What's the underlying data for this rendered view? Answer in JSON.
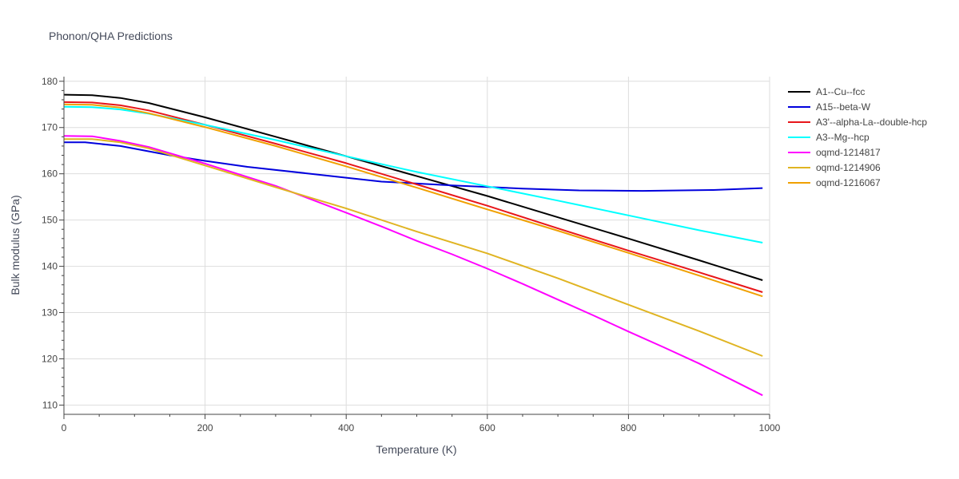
{
  "chart_data": {
    "type": "line",
    "title": "Phonon/QHA Predictions",
    "xlabel": "Temperature (K)",
    "ylabel": "Bulk modulus (GPa)",
    "xlim": [
      0,
      1000
    ],
    "ylim": [
      108,
      181
    ],
    "x_ticks": [
      0,
      200,
      400,
      600,
      800,
      1000
    ],
    "y_ticks": [
      110,
      120,
      130,
      140,
      150,
      160,
      170,
      180
    ],
    "grid": true,
    "legend_position": "top-right",
    "series": [
      {
        "name": "A1--Cu--fcc",
        "color": "#000000",
        "x": [
          0,
          40,
          80,
          120,
          200,
          300,
          400,
          500,
          600,
          700,
          800,
          900,
          990
        ],
        "y": [
          177.1,
          177.0,
          176.4,
          175.3,
          172.2,
          168.0,
          163.8,
          159.5,
          155.2,
          150.6,
          146.0,
          141.3,
          137.0
        ]
      },
      {
        "name": "A15--beta-W",
        "color": "#0000dd",
        "x": [
          0,
          30,
          80,
          150,
          200,
          260,
          350,
          450,
          550,
          650,
          730,
          820,
          920,
          990
        ],
        "y": [
          166.8,
          166.8,
          166.0,
          164.0,
          162.8,
          161.5,
          160.0,
          158.3,
          157.5,
          156.8,
          156.4,
          156.3,
          156.5,
          156.9
        ]
      },
      {
        "name": "A3'--alpha-La--double-hcp",
        "color": "#e8161a",
        "x": [
          0,
          40,
          80,
          120,
          200,
          300,
          400,
          500,
          600,
          700,
          800,
          900,
          990
        ],
        "y": [
          175.5,
          175.4,
          174.8,
          173.7,
          170.6,
          166.5,
          162.3,
          157.7,
          153.1,
          148.2,
          143.4,
          138.7,
          134.4
        ]
      },
      {
        "name": "A3--Mg--hcp",
        "color": "#00ffff",
        "x": [
          0,
          40,
          80,
          120,
          200,
          300,
          400,
          500,
          600,
          700,
          800,
          900,
          990
        ],
        "y": [
          174.5,
          174.4,
          173.9,
          173.0,
          170.6,
          167.3,
          163.8,
          160.4,
          157.3,
          154.2,
          151.0,
          147.8,
          145.1
        ]
      },
      {
        "name": "oqmd-1214817",
        "color": "#ff00ff",
        "x": [
          0,
          40,
          80,
          120,
          200,
          300,
          400,
          450,
          500,
          550,
          600,
          650,
          700,
          750,
          800,
          850,
          900,
          950,
          990
        ],
        "y": [
          168.2,
          168.1,
          167.1,
          165.8,
          162.2,
          157.4,
          151.6,
          148.6,
          145.5,
          142.6,
          139.5,
          136.2,
          132.8,
          129.4,
          125.9,
          122.5,
          119.0,
          115.2,
          112.1
        ]
      },
      {
        "name": "oqmd-1214906",
        "color": "#e0b422",
        "x": [
          0,
          40,
          80,
          120,
          200,
          300,
          400,
          500,
          600,
          700,
          800,
          900,
          990
        ],
        "y": [
          167.5,
          167.5,
          166.8,
          165.5,
          161.8,
          157.1,
          152.5,
          147.5,
          142.8,
          137.4,
          131.7,
          126.0,
          120.6
        ]
      },
      {
        "name": "oqmd-1216067",
        "color": "#f0a000",
        "x": [
          0,
          40,
          80,
          120,
          200,
          300,
          400,
          500,
          600,
          700,
          800,
          900,
          990
        ],
        "y": [
          175.0,
          174.9,
          174.3,
          173.1,
          170.1,
          166.0,
          161.6,
          157.0,
          152.3,
          147.7,
          142.9,
          138.0,
          133.5
        ]
      }
    ]
  }
}
